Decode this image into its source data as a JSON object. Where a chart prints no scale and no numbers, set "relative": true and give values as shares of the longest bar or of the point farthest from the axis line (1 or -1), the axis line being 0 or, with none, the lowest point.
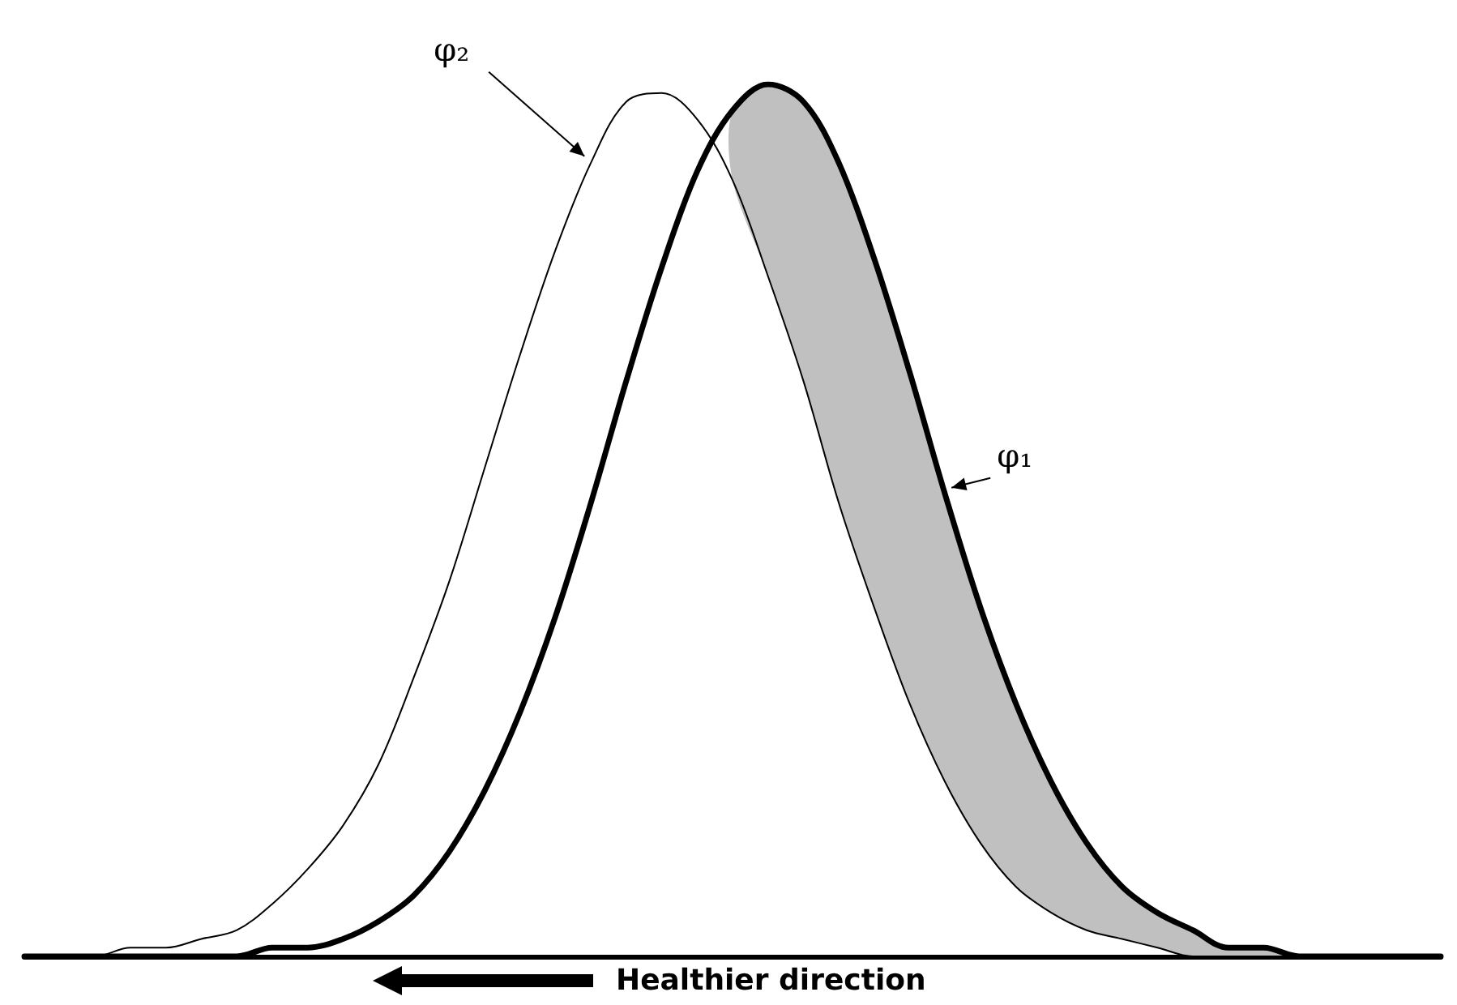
{
  "chart_data": {
    "type": "line",
    "relative": true,
    "marker": "none",
    "categories": [
      null,
      null,
      null,
      null,
      null,
      null,
      null,
      null,
      null,
      null,
      null,
      null,
      null,
      null,
      null,
      null,
      null,
      null,
      null,
      null,
      null,
      null,
      null,
      null,
      null,
      null,
      null,
      null,
      null,
      null,
      null,
      null,
      null,
      null,
      null,
      null,
      null,
      null,
      null,
      null,
      null
    ],
    "annotations": [
      "Healthier direction"
    ],
    "series": [
      {
        "name": "φ₁",
        "color": "#000000",
        "values": [
          0,
          0,
          0,
          0,
          0,
          0,
          0,
          0.01,
          0.01,
          0.02,
          0.04,
          0.07,
          0.12,
          0.19,
          0.28,
          0.39,
          0.52,
          0.66,
          0.79,
          0.9,
          0.97,
          1,
          0.98,
          0.91,
          0.8,
          0.67,
          0.53,
          0.4,
          0.29,
          0.2,
          0.13,
          0.08,
          0.05,
          0.03,
          0.01,
          0.01,
          0,
          0,
          0,
          0,
          0
        ],
        "lower": [
          null,
          null,
          null,
          null,
          null,
          null,
          null,
          null,
          null,
          null,
          null,
          null,
          null,
          null,
          null,
          null,
          null,
          null,
          null,
          null,
          0.89,
          0.78,
          0.66,
          0.52,
          0.4,
          0.29,
          0.2,
          0.13,
          0.08,
          0.05,
          0.03,
          0.02,
          0.01,
          0,
          0,
          0,
          0,
          0,
          0,
          0,
          0
        ],
        "upper": [
          null,
          null,
          null,
          null,
          null,
          null,
          null,
          null,
          null,
          null,
          null,
          null,
          null,
          null,
          null,
          null,
          null,
          null,
          null,
          null,
          0.97,
          1,
          0.98,
          0.91,
          0.8,
          0.67,
          0.53,
          0.4,
          0.29,
          0.2,
          0.13,
          0.08,
          0.05,
          0.03,
          0.01,
          0.01,
          0,
          0,
          0,
          0,
          0
        ]
      },
      {
        "name": "φ₂",
        "color": "#000000",
        "values": [
          0,
          0,
          0,
          0.01,
          0.01,
          0.02,
          0.03,
          0.06,
          0.1,
          0.15,
          0.22,
          0.32,
          0.43,
          0.56,
          0.69,
          0.81,
          0.91,
          0.98,
          0.99,
          0.96,
          0.89,
          0.78,
          0.66,
          0.52,
          0.4,
          0.29,
          0.2,
          0.13,
          0.08,
          0.05,
          0.03,
          0.02,
          0.01,
          0,
          0,
          0,
          0,
          0,
          0,
          0,
          0
        ]
      }
    ]
  }
}
